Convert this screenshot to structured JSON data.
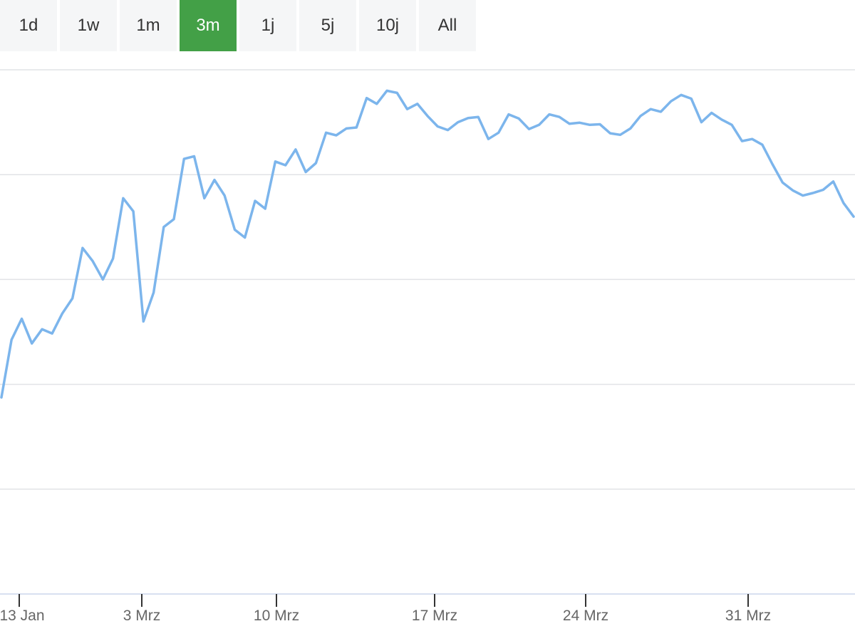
{
  "range_selector": {
    "buttons": [
      {
        "label": "1d"
      },
      {
        "label": "1w"
      },
      {
        "label": "1m"
      },
      {
        "label": "3m"
      },
      {
        "label": "1j"
      },
      {
        "label": "5j"
      },
      {
        "label": "10j"
      },
      {
        "label": "All"
      }
    ],
    "active_index": 3,
    "active_color": "#43a047"
  },
  "chart_data": {
    "type": "line",
    "title": "",
    "xlabel": "",
    "ylabel": "",
    "grid": true,
    "y_labels_visible": false,
    "ylim": [
      0,
      100
    ],
    "x_tick_labels": [
      "13 Jan",
      "3 Mrz",
      "10 Mrz",
      "17 Mrz",
      "24 Mrz",
      "31 Mrz"
    ],
    "series": [
      {
        "color": "#7cb5ec",
        "values": [
          37.5,
          48.5,
          52.5,
          47.8,
          50.5,
          49.7,
          53.5,
          56.4,
          66,
          63.5,
          60,
          64,
          75.5,
          73,
          52,
          57.5,
          70,
          71.5,
          83,
          83.5,
          75.5,
          79,
          76,
          69.5,
          68,
          75,
          73.5,
          82.5,
          81.8,
          84.8,
          80.5,
          82.2,
          88,
          87.5,
          88.8,
          89,
          94.6,
          93.5,
          96,
          95.6,
          92.5,
          93.5,
          91.2,
          89.2,
          88.5,
          90,
          90.8,
          91,
          86.8,
          88,
          91.5,
          90.7,
          88.7,
          89.5,
          91.5,
          91,
          89.7,
          89.9,
          89.5,
          89.6,
          87.9,
          87.6,
          88.8,
          91.2,
          92.5,
          92,
          94,
          95.2,
          94.5,
          90,
          91.8,
          90.5,
          89.5,
          86.4,
          86.8,
          85.7,
          82,
          78.5,
          77,
          76,
          76.5,
          77.1,
          78.7,
          74.6,
          72
        ]
      }
    ]
  }
}
